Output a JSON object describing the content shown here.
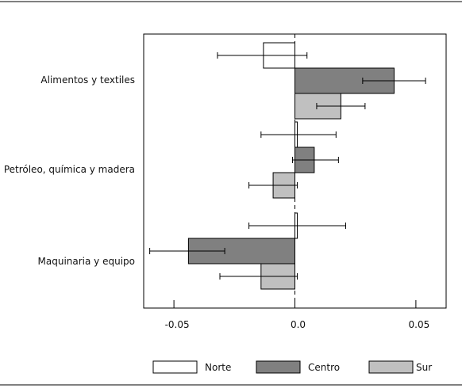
{
  "chart_data": {
    "type": "bar",
    "orientation": "horizontal",
    "categories": [
      "Alimentos y textiles",
      "Petróleo, química y madera",
      "Maquinaria y equipo"
    ],
    "series": [
      {
        "name": "Norte",
        "color": "#ffffff",
        "values": [
          -0.013,
          0.001,
          0.001
        ],
        "ci_low": [
          -0.032,
          -0.014,
          -0.019
        ],
        "ci_high": [
          0.005,
          0.017,
          0.021
        ]
      },
      {
        "name": "Centro",
        "color": "#808080",
        "values": [
          0.041,
          0.008,
          -0.044
        ],
        "ci_low": [
          0.028,
          -0.001,
          -0.06
        ],
        "ci_high": [
          0.054,
          0.018,
          -0.029
        ]
      },
      {
        "name": "Sur",
        "color": "#c0c0c0",
        "values": [
          0.019,
          -0.009,
          -0.014
        ],
        "ci_low": [
          0.009,
          -0.019,
          -0.031
        ],
        "ci_high": [
          0.029,
          0.001,
          0.001
        ]
      }
    ],
    "xticks": [
      -0.05,
      0.0,
      0.05
    ],
    "xtick_labels": [
      "-0.05",
      "0.0",
      "0.05"
    ],
    "xlim": [
      -0.0625,
      0.0625
    ],
    "reference_line": 0.0,
    "grid": false,
    "legend_position": "bottom",
    "title": "",
    "xlabel": "",
    "ylabel": ""
  }
}
